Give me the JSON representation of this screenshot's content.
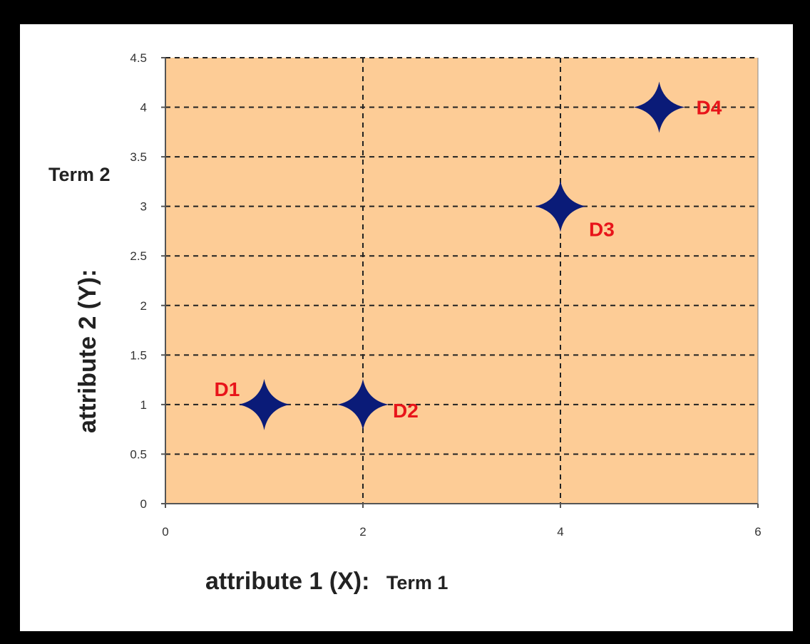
{
  "chart_data": {
    "type": "scatter",
    "title": "",
    "xlabel": "attribute 1  (X):",
    "xlabel_term": "Term 1",
    "ylabel": "attribute 2  (Y):",
    "ylabel_term": "Term 2",
    "xlim": [
      0,
      6
    ],
    "ylim": [
      0,
      4.5
    ],
    "x_ticks": [
      "0",
      "2",
      "4",
      "6"
    ],
    "y_ticks": [
      "0",
      "0.5",
      "1",
      "1.5",
      "2",
      "2.5",
      "3",
      "3.5",
      "4",
      "4.5"
    ],
    "grid": true,
    "series": [
      {
        "points": [
          {
            "label": "D1",
            "x": 1,
            "y": 1
          },
          {
            "label": "D2",
            "x": 2,
            "y": 1
          },
          {
            "label": "D3",
            "x": 4,
            "y": 3
          },
          {
            "label": "D4",
            "x": 5,
            "y": 4
          }
        ]
      }
    ],
    "colors": {
      "plot_bg": "#fdcc96",
      "marker": "#0a1b78",
      "point_label": "#e8141a",
      "grid": "#222222"
    }
  }
}
